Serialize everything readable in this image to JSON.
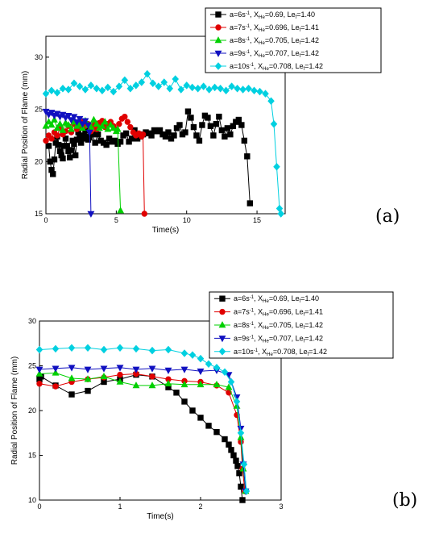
{
  "panels": [
    {
      "label": "(a)",
      "chart_data": {
        "type": "line",
        "xlabel": "Time(s)",
        "ylabel": "Radial Position of Flame (mm)",
        "xlim": [
          0,
          17
        ],
        "ylim": [
          15,
          32
        ],
        "xticks": [
          "0",
          "5",
          "10",
          "15"
        ],
        "yticks": [
          "15",
          "20",
          "25",
          "30"
        ],
        "legend_position": "top-right",
        "grid": false,
        "series": [
          {
            "name_parts": [
              "a=6s",
              "-1",
              ", X",
              "He",
              "=0.69, Le",
              "f",
              "=1.40"
            ],
            "color": "#000000",
            "marker": "square",
            "x": [
              0.2,
              0.3,
              0.4,
              0.5,
              0.6,
              0.7,
              0.8,
              0.9,
              1.0,
              1.1,
              1.2,
              1.3,
              1.4,
              1.5,
              1.6,
              1.7,
              1.8,
              1.9,
              2.0,
              2.1,
              2.2,
              2.3,
              2.4,
              2.5,
              2.6,
              2.7,
              2.8,
              2.9,
              3.0,
              3.1,
              3.3,
              3.5,
              3.7,
              3.9,
              4.1,
              4.3,
              4.5,
              4.7,
              4.9,
              5.1,
              5.3,
              5.5,
              5.7,
              5.9,
              6.1,
              6.3,
              6.5,
              6.7,
              6.9,
              7.1,
              7.3,
              7.5,
              7.7,
              7.9,
              8.1,
              8.3,
              8.5,
              8.7,
              8.9,
              9.1,
              9.3,
              9.5,
              9.7,
              9.9,
              10.1,
              10.3,
              10.5,
              10.7,
              10.9,
              11.1,
              11.3,
              11.5,
              11.7,
              11.9,
              12.1,
              12.3,
              12.5,
              12.7,
              12.9,
              13.1,
              13.3,
              13.5,
              13.7,
              13.9,
              14.1,
              14.3,
              14.5
            ],
            "y": [
              21.5,
              20.0,
              19.2,
              18.8,
              20.2,
              21.8,
              22.4,
              21.6,
              21.0,
              20.6,
              20.3,
              21.5,
              22.2,
              21.5,
              21.0,
              20.4,
              21.1,
              22.0,
              21.7,
              20.6,
              22.1,
              22.8,
              22.3,
              21.8,
              22.2,
              22.5,
              23.0,
              22.4,
              22.1,
              22.3,
              22.6,
              21.8,
              22.6,
              22.0,
              21.8,
              21.6,
              22.2,
              21.9,
              22.0,
              21.7,
              21.9,
              22.5,
              22.7,
              21.9,
              22.2,
              23.0,
              22.2,
              22.4,
              22.6,
              22.8,
              22.7,
              22.5,
              23.0,
              22.9,
              23.0,
              22.6,
              22.4,
              22.8,
              22.2,
              22.5,
              23.2,
              23.5,
              22.6,
              22.8,
              24.8,
              24.2,
              23.3,
              22.5,
              22.0,
              23.5,
              24.4,
              24.2,
              23.4,
              22.5,
              23.6,
              24.3,
              23.0,
              22.4,
              23.2,
              22.6,
              23.4,
              23.8,
              24.0,
              23.5,
              22.0,
              20.5,
              16.0
            ]
          },
          {
            "name_parts": [
              "a=7s",
              "-1",
              ", X",
              "He",
              "=0.696, Le",
              "f",
              "=1.41"
            ],
            "color": "#e00000",
            "marker": "circle",
            "x": [
              0.0,
              0.2,
              0.4,
              0.6,
              0.8,
              1.0,
              1.2,
              1.4,
              1.6,
              1.8,
              2.0,
              2.2,
              2.4,
              2.6,
              2.8,
              3.0,
              3.2,
              3.4,
              3.6,
              3.8,
              4.0,
              4.2,
              4.4,
              4.6,
              4.8,
              5.0,
              5.2,
              5.4,
              5.6,
              5.8,
              6.0,
              6.2,
              6.4,
              6.6,
              6.8,
              6.9,
              7.0
            ],
            "y": [
              22.0,
              22.5,
              22.2,
              22.8,
              22.5,
              23.2,
              22.6,
              22.9,
              23.4,
              22.8,
              23.6,
              23.1,
              23.2,
              23.8,
              23.4,
              23.6,
              22.9,
              23.5,
              23.1,
              23.7,
              23.9,
              23.3,
              23.6,
              23.8,
              23.4,
              23.1,
              23.6,
              24.1,
              24.3,
              23.8,
              23.3,
              22.8,
              22.5,
              22.7,
              22.4,
              22.6,
              15.0
            ]
          },
          {
            "name_parts": [
              "a=8s",
              "-1",
              ", X",
              "He",
              "=0.705, Le",
              "f",
              "=1.42"
            ],
            "color": "#00d000",
            "marker": "triangle-up",
            "x": [
              0.0,
              0.2,
              0.4,
              0.6,
              0.8,
              1.0,
              1.2,
              1.4,
              1.6,
              1.8,
              2.0,
              2.2,
              2.4,
              2.6,
              2.8,
              3.0,
              3.2,
              3.4,
              3.6,
              3.8,
              4.0,
              4.2,
              4.4,
              4.6,
              4.8,
              5.0,
              5.1,
              5.3
            ],
            "y": [
              23.4,
              23.8,
              23.5,
              24.0,
              23.2,
              23.6,
              23.0,
              23.7,
              23.5,
              23.1,
              23.8,
              23.4,
              23.6,
              23.2,
              23.9,
              23.5,
              23.3,
              24.0,
              23.6,
              23.2,
              23.4,
              23.8,
              23.1,
              23.5,
              23.2,
              22.9,
              23.1,
              15.3
            ]
          },
          {
            "name_parts": [
              "a=9s",
              "-1",
              ", X",
              "He",
              "=0.707, Le",
              "f",
              "=1.42"
            ],
            "color": "#1010c0",
            "marker": "triangle-down",
            "x": [
              0.0,
              0.2,
              0.4,
              0.6,
              0.8,
              1.0,
              1.2,
              1.4,
              1.6,
              1.8,
              2.0,
              2.2,
              2.4,
              2.6,
              2.8,
              3.0,
              3.1,
              3.2
            ],
            "y": [
              24.8,
              24.5,
              24.7,
              24.4,
              24.6,
              24.3,
              24.5,
              24.2,
              24.4,
              24.0,
              24.3,
              23.8,
              24.1,
              23.6,
              23.9,
              23.5,
              22.8,
              15.0
            ]
          },
          {
            "name_parts": [
              "a=10s",
              "-1",
              ", X",
              "He",
              "=0.708, Le",
              "f",
              "=1.42"
            ],
            "color": "#00d0e0",
            "marker": "diamond",
            "x": [
              0.0,
              0.4,
              0.8,
              1.2,
              1.6,
              2.0,
              2.4,
              2.8,
              3.2,
              3.6,
              4.0,
              4.4,
              4.8,
              5.2,
              5.6,
              6.0,
              6.4,
              6.8,
              7.2,
              7.6,
              8.0,
              8.4,
              8.8,
              9.2,
              9.6,
              10.0,
              10.4,
              10.8,
              11.2,
              11.6,
              12.0,
              12.4,
              12.8,
              13.2,
              13.6,
              14.0,
              14.4,
              14.8,
              15.2,
              15.6,
              16.0,
              16.2,
              16.4,
              16.6,
              16.7
            ],
            "y": [
              26.5,
              26.8,
              26.6,
              27.0,
              26.9,
              27.5,
              27.2,
              26.9,
              27.3,
              27.0,
              26.8,
              27.1,
              26.7,
              27.2,
              27.8,
              27.0,
              27.3,
              27.6,
              28.4,
              27.5,
              27.2,
              27.6,
              27.0,
              27.9,
              26.9,
              27.3,
              27.1,
              27.0,
              27.2,
              26.9,
              27.1,
              27.0,
              26.8,
              27.2,
              27.0,
              26.9,
              27.0,
              26.8,
              26.7,
              26.5,
              25.8,
              23.6,
              19.5,
              15.5,
              15.0
            ]
          }
        ]
      }
    },
    {
      "label": "(b)",
      "chart_data": {
        "type": "line",
        "xlabel": "Time(s)",
        "ylabel": "Radial Position of Flame (mm)",
        "xlim": [
          0,
          3
        ],
        "ylim": [
          10,
          30
        ],
        "xticks": [
          "0",
          "1",
          "2",
          "3"
        ],
        "yticks": [
          "10",
          "15",
          "20",
          "25",
          "30"
        ],
        "legend_position": "top-right",
        "grid": false,
        "series": [
          {
            "name_parts": [
              "a=6s",
              "-1",
              ", X",
              "He",
              "=0.69, Le",
              "f",
              "=1.40"
            ],
            "color": "#000000",
            "marker": "square",
            "x": [
              0.0,
              0.02,
              0.2,
              0.4,
              0.6,
              0.8,
              1.0,
              1.2,
              1.4,
              1.6,
              1.7,
              1.8,
              1.9,
              2.0,
              2.1,
              2.2,
              2.3,
              2.35,
              2.38,
              2.41,
              2.44,
              2.46,
              2.48,
              2.5,
              2.52
            ],
            "y": [
              23.5,
              23.8,
              22.8,
              21.8,
              22.2,
              23.2,
              23.5,
              24.0,
              23.8,
              22.6,
              22.0,
              21.0,
              20.0,
              19.2,
              18.3,
              17.6,
              16.8,
              16.2,
              15.6,
              15.0,
              14.4,
              13.8,
              13.0,
              11.5,
              10.0
            ]
          },
          {
            "name_parts": [
              "a=7s",
              "-1",
              ", X",
              "He",
              "=0.696, Le",
              "f",
              "=1.41"
            ],
            "color": "#e00000",
            "marker": "circle",
            "x": [
              0.0,
              0.2,
              0.4,
              0.6,
              0.8,
              1.0,
              1.2,
              1.4,
              1.6,
              1.8,
              2.0,
              2.2,
              2.35,
              2.45,
              2.5,
              2.52,
              2.55
            ],
            "y": [
              23.0,
              22.7,
              23.2,
              23.5,
              23.7,
              24.0,
              24.1,
              23.8,
              23.5,
              23.3,
              23.2,
              22.8,
              22.0,
              19.5,
              16.5,
              13.5,
              11.0
            ]
          },
          {
            "name_parts": [
              "a=8s",
              "-1",
              ", X",
              "He",
              "=0.705, Le",
              "f",
              "=1.42"
            ],
            "color": "#00d000",
            "marker": "triangle-up",
            "x": [
              0.0,
              0.2,
              0.4,
              0.6,
              0.8,
              1.0,
              1.2,
              1.4,
              1.6,
              1.8,
              2.0,
              2.2,
              2.35,
              2.45,
              2.5,
              2.53,
              2.56
            ],
            "y": [
              24.1,
              24.2,
              23.6,
              23.5,
              23.8,
              23.2,
              22.8,
              22.8,
              23.0,
              22.9,
              22.9,
              22.9,
              22.6,
              20.5,
              17.0,
              13.5,
              11.0
            ]
          },
          {
            "name_parts": [
              "a=9s",
              "-1",
              ", X",
              "He",
              "=0.707, Le",
              "f",
              "=1.42"
            ],
            "color": "#1010c0",
            "marker": "triangle-down",
            "x": [
              0.0,
              0.2,
              0.4,
              0.6,
              0.8,
              1.0,
              1.2,
              1.4,
              1.6,
              1.8,
              2.0,
              2.2,
              2.35,
              2.45,
              2.5,
              2.53,
              2.56
            ],
            "y": [
              24.6,
              24.7,
              24.8,
              24.6,
              24.7,
              24.8,
              24.6,
              24.7,
              24.5,
              24.6,
              24.4,
              24.5,
              24.0,
              21.5,
              18.0,
              14.0,
              11.0
            ]
          },
          {
            "name_parts": [
              "a=10s",
              "-1",
              ", X",
              "He",
              "=0.708, Le",
              "f",
              "=1.42"
            ],
            "color": "#00d0e0",
            "marker": "diamond",
            "x": [
              0.0,
              0.2,
              0.4,
              0.6,
              0.8,
              1.0,
              1.2,
              1.4,
              1.6,
              1.8,
              1.9,
              2.0,
              2.1,
              2.2,
              2.3,
              2.38,
              2.45,
              2.5,
              2.54,
              2.57
            ],
            "y": [
              26.8,
              26.9,
              27.0,
              27.0,
              26.8,
              27.0,
              26.9,
              26.7,
              26.8,
              26.4,
              26.2,
              25.8,
              25.2,
              24.8,
              24.3,
              23.2,
              21.0,
              17.5,
              14.0,
              11.0
            ]
          }
        ]
      }
    }
  ]
}
